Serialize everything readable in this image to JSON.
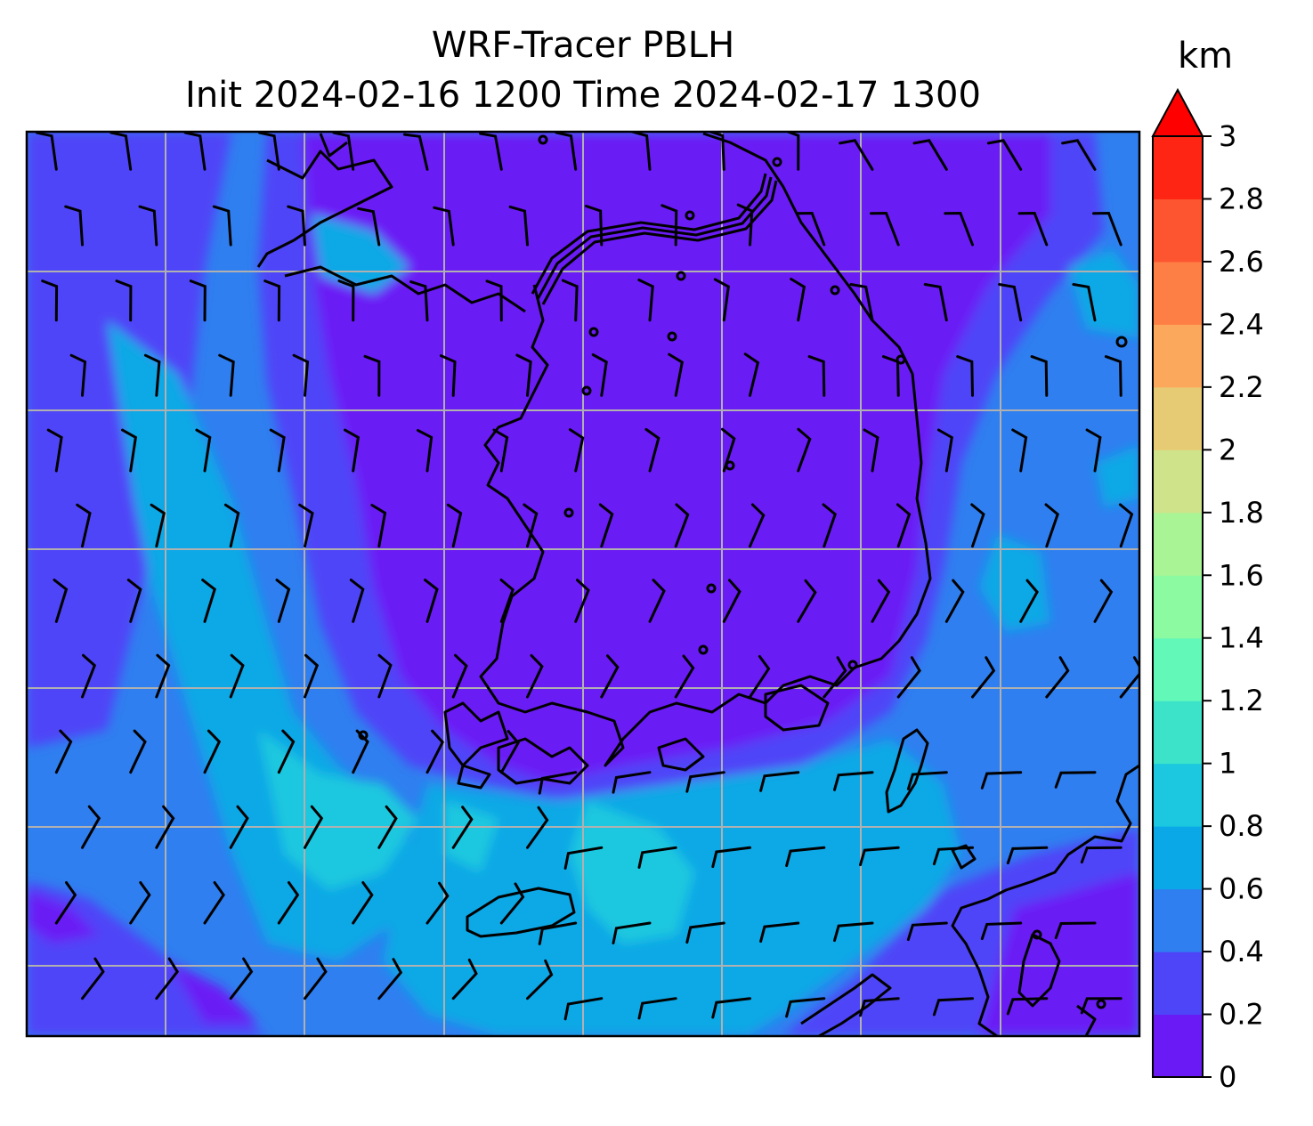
{
  "title": "WRF-Tracer PBLH",
  "subtitle": "Init 2024-02-16 1200 Time 2024-02-17 1300",
  "colorbar": {
    "unit": "km",
    "ticks": [
      "0",
      "0.2",
      "0.4",
      "0.6",
      "0.8",
      "1",
      "1.2",
      "1.4",
      "1.6",
      "1.8",
      "2",
      "2.2",
      "2.4",
      "2.6",
      "2.8",
      "3"
    ],
    "levels": [
      0,
      0.2,
      0.4,
      0.6,
      0.8,
      1.0,
      1.2,
      1.4,
      1.6,
      1.8,
      2.0,
      2.2,
      2.4,
      2.6,
      2.8,
      3.0
    ],
    "colors": [
      "#6a1af5",
      "#4f45f8",
      "#2f7ff0",
      "#0aa8e6",
      "#1bc8df",
      "#3ce3c8",
      "#62f8b8",
      "#8cfaa0",
      "#a9f595",
      "#cfe48a",
      "#e6cb74",
      "#fca85c",
      "#fd7f45",
      "#fd5530",
      "#fe2514"
    ],
    "extend": "max",
    "extend_color": "#ff0000"
  },
  "map": {
    "field": "planetary boundary layer height",
    "region": "Korean Peninsula / Yellow Sea / Sea of Japan",
    "overlay": "wind barbs",
    "gridlines": true
  }
}
